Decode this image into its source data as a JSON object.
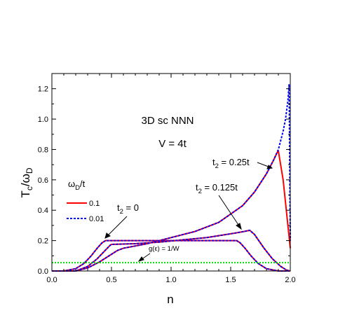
{
  "chart_data": {
    "type": "line",
    "xlabel": "n",
    "ylabel_main": "T",
    "ylabel_sub1": "c",
    "ylabel_mid": "/ω",
    "ylabel_sub2": "D",
    "xlim": [
      0.0,
      2.0
    ],
    "ylim": [
      0.0,
      1.3
    ],
    "xticks": [
      0.0,
      0.5,
      1.0,
      1.5,
      2.0
    ],
    "xtick_labels": [
      "0.0",
      "0.5",
      "1.0",
      "1.5",
      "2.0"
    ],
    "yticks": [
      0.0,
      0.2,
      0.4,
      0.6,
      0.8,
      1.0,
      1.2
    ],
    "ytick_labels": [
      "0.0",
      "0.2",
      "0.4",
      "0.6",
      "0.8",
      "1.0",
      "1.2"
    ],
    "grid": false,
    "legend": {
      "title_main": "ω",
      "title_sub": "D",
      "title_tail": "/t",
      "placement": "left",
      "entries": [
        {
          "label": "0.1",
          "color": "#ff0000",
          "style": "solid"
        },
        {
          "label": "0.01",
          "color": "#0000ff",
          "style": "dashed"
        }
      ]
    },
    "annotations": {
      "title_line1": "3D sc  NNN",
      "title_line2": "V = 4t",
      "t2_zero": {
        "main": "t",
        "sub": "2",
        "tail": " = 0"
      },
      "t2_0125": {
        "main": "t",
        "sub": "2",
        "tail": " = 0.125t"
      },
      "t2_025": {
        "main": "t",
        "sub": "2",
        "tail": " = 0.25t"
      },
      "dos_label": "g(ε) = 1/W"
    },
    "series": [
      {
        "name": "t2 = 0, ωD/t = 0.1",
        "color": "#ff0000",
        "style": "solid",
        "x": [
          0.0,
          0.1,
          0.2,
          0.27,
          0.33,
          0.38,
          0.42,
          0.45,
          0.7,
          1.0,
          1.3,
          1.55,
          1.58,
          1.62,
          1.67,
          1.73,
          1.8,
          1.9,
          2.0
        ],
        "y": [
          0.0,
          0.0,
          0.015,
          0.05,
          0.1,
          0.15,
          0.185,
          0.2,
          0.2,
          0.2,
          0.2,
          0.2,
          0.185,
          0.15,
          0.1,
          0.05,
          0.015,
          0.0,
          0.0
        ]
      },
      {
        "name": "t2 = 0, ωD/t = 0.01",
        "color": "#0000ff",
        "style": "dashed",
        "x": [
          0.0,
          0.1,
          0.2,
          0.27,
          0.33,
          0.38,
          0.42,
          0.45,
          0.7,
          1.0,
          1.3,
          1.55,
          1.58,
          1.62,
          1.67,
          1.73,
          1.8,
          1.9,
          2.0
        ],
        "y": [
          0.0,
          0.0,
          0.015,
          0.05,
          0.1,
          0.15,
          0.185,
          0.2,
          0.2,
          0.2,
          0.2,
          0.2,
          0.185,
          0.15,
          0.1,
          0.05,
          0.015,
          0.0,
          0.0
        ]
      },
      {
        "name": "t2 = 0.125t, ωD/t = 0.1",
        "color": "#ff0000",
        "style": "solid",
        "x": [
          0.0,
          0.2,
          0.3,
          0.38,
          0.44,
          0.49,
          0.5,
          0.7,
          0.9,
          1.1,
          1.3,
          1.5,
          1.6,
          1.66,
          1.7,
          1.78,
          1.85,
          1.92,
          1.97,
          2.0
        ],
        "y": [
          0.0,
          0.0,
          0.03,
          0.08,
          0.13,
          0.17,
          0.175,
          0.18,
          0.19,
          0.205,
          0.22,
          0.245,
          0.258,
          0.268,
          0.24,
          0.15,
          0.08,
          0.03,
          0.005,
          0.0
        ]
      },
      {
        "name": "t2 = 0.125t, ωD/t = 0.01",
        "color": "#0000ff",
        "style": "dashed",
        "x": [
          0.0,
          0.2,
          0.3,
          0.38,
          0.44,
          0.49,
          0.5,
          0.7,
          0.9,
          1.1,
          1.3,
          1.5,
          1.6,
          1.66,
          1.7,
          1.78,
          1.85,
          1.92,
          1.97,
          2.0
        ],
        "y": [
          0.0,
          0.0,
          0.03,
          0.08,
          0.13,
          0.17,
          0.175,
          0.18,
          0.19,
          0.205,
          0.22,
          0.245,
          0.258,
          0.268,
          0.24,
          0.15,
          0.08,
          0.03,
          0.005,
          0.0
        ]
      },
      {
        "name": "t2 = 0.25t, ωD/t = 0.1",
        "color": "#ff0000",
        "style": "solid",
        "x": [
          0.0,
          0.2,
          0.3,
          0.4,
          0.5,
          0.55,
          0.6,
          0.8,
          1.0,
          1.2,
          1.4,
          1.6,
          1.7,
          1.8,
          1.86,
          1.89,
          1.9,
          1.94,
          1.98,
          2.0
        ],
        "y": [
          0.0,
          0.0,
          0.02,
          0.06,
          0.11,
          0.135,
          0.15,
          0.18,
          0.22,
          0.26,
          0.32,
          0.43,
          0.52,
          0.64,
          0.73,
          0.78,
          0.79,
          0.6,
          0.3,
          0.15
        ]
      },
      {
        "name": "t2 = 0.25t, ωD/t = 0.01",
        "color": "#0000ff",
        "style": "dashed",
        "x": [
          0.0,
          0.2,
          0.3,
          0.4,
          0.5,
          0.55,
          0.6,
          0.8,
          1.0,
          1.2,
          1.4,
          1.6,
          1.7,
          1.8,
          1.86,
          1.9,
          1.94,
          1.96,
          1.98,
          1.99,
          2.0
        ],
        "y": [
          0.0,
          0.0,
          0.02,
          0.06,
          0.11,
          0.135,
          0.15,
          0.18,
          0.22,
          0.26,
          0.32,
          0.43,
          0.52,
          0.64,
          0.73,
          0.8,
          0.92,
          1.0,
          1.12,
          1.23,
          0.2
        ]
      },
      {
        "name": "g(ε) = 1/W",
        "color": "#00dd00",
        "style": "dotted",
        "x": [
          0.0,
          2.0
        ],
        "y": [
          0.055,
          0.055
        ]
      }
    ]
  }
}
